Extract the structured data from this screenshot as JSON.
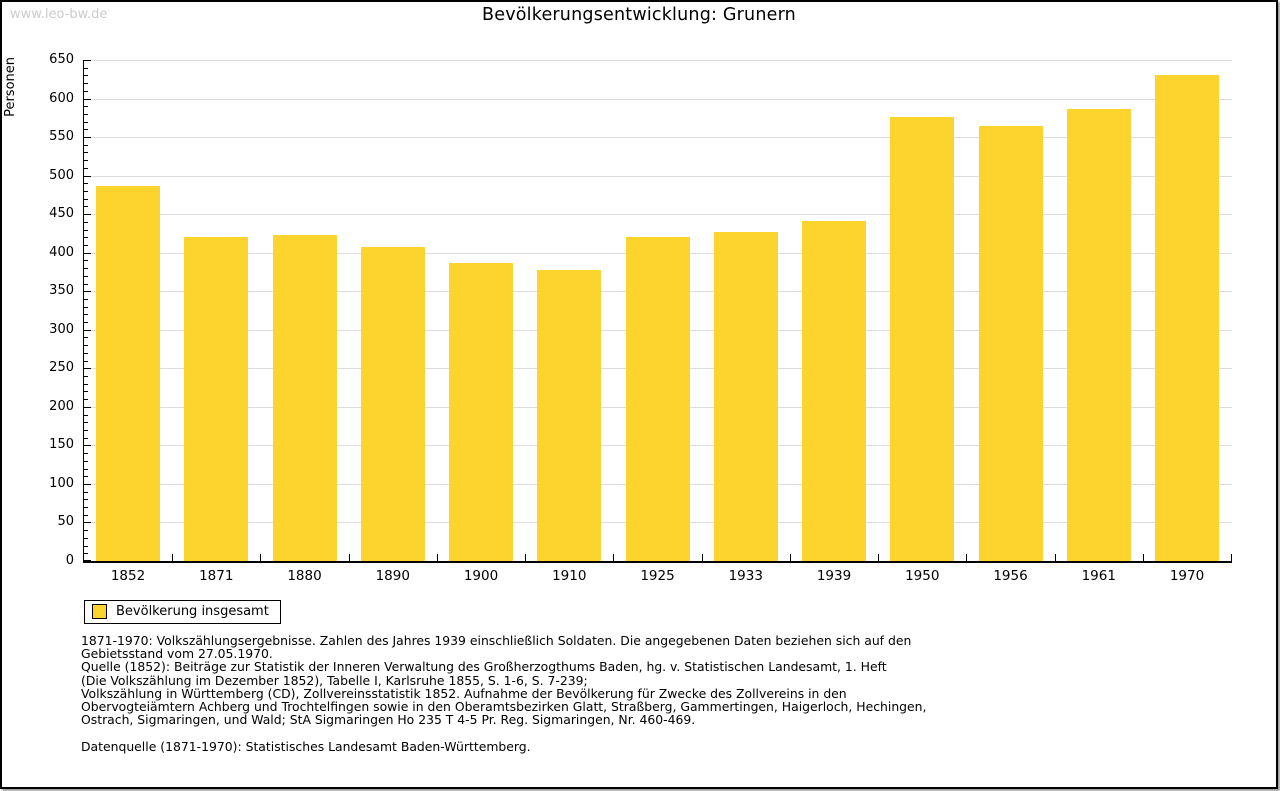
{
  "page": {
    "watermark": "www.leo-bw.de",
    "title": "Bevölkerungsentwicklung: Grunern"
  },
  "chart_data": {
    "type": "bar",
    "title": "Bevölkerungsentwicklung: Grunern",
    "categories": [
      "1852",
      "1871",
      "1880",
      "1890",
      "1900",
      "1910",
      "1925",
      "1933",
      "1939",
      "1950",
      "1956",
      "1961",
      "1970"
    ],
    "values": [
      486,
      420,
      423,
      408,
      387,
      378,
      421,
      427,
      441,
      576,
      564,
      587,
      631
    ],
    "series_name": "Bevölkerung insgesamt",
    "xlabel": "",
    "ylabel": "Personen",
    "ylim": [
      0,
      650
    ],
    "ytick_step": 50,
    "yminor_step": 10,
    "grid": true,
    "legend_position": "bottom-left",
    "bar_color": "#fdd32d"
  },
  "legend": {
    "label": "Bevölkerung insgesamt"
  },
  "footer": {
    "lines": [
      "1871-1970: Volkszählungsergebnisse. Zahlen des Jahres 1939 einschließlich Soldaten. Die angegebenen Daten beziehen sich auf den",
      "Gebietsstand vom 27.05.1970.",
      "Quelle (1852): Beiträge zur Statistik der Inneren Verwaltung des Großherzogthums Baden, hg. v. Statistischen Landesamt, 1. Heft",
      "(Die Volkszählung im Dezember 1852), Tabelle I, Karlsruhe 1855, S. 1-6, S. 7-239;",
      "Volkszählung in Württemberg (CD), Zollvereinsstatistik 1852. Aufnahme der Bevölkerung für Zwecke des Zollvereins in den",
      "Obervogteiämtern Achberg und Trochtelfingen sowie in den Oberamtsbezirken Glatt, Straßberg, Gammertingen, Haigerloch, Hechingen,",
      "Ostrach, Sigmaringen, und Wald; StA Sigmaringen Ho 235 T 4-5 Pr. Reg. Sigmaringen, Nr. 460-469."
    ],
    "datenquelle": "Datenquelle (1871-1970): Statistisches Landesamt Baden-Württemberg."
  },
  "colors": {
    "bar": "#fdd32d",
    "grid": "#dddddd",
    "axis": "#000000",
    "watermark": "#cccccc"
  }
}
